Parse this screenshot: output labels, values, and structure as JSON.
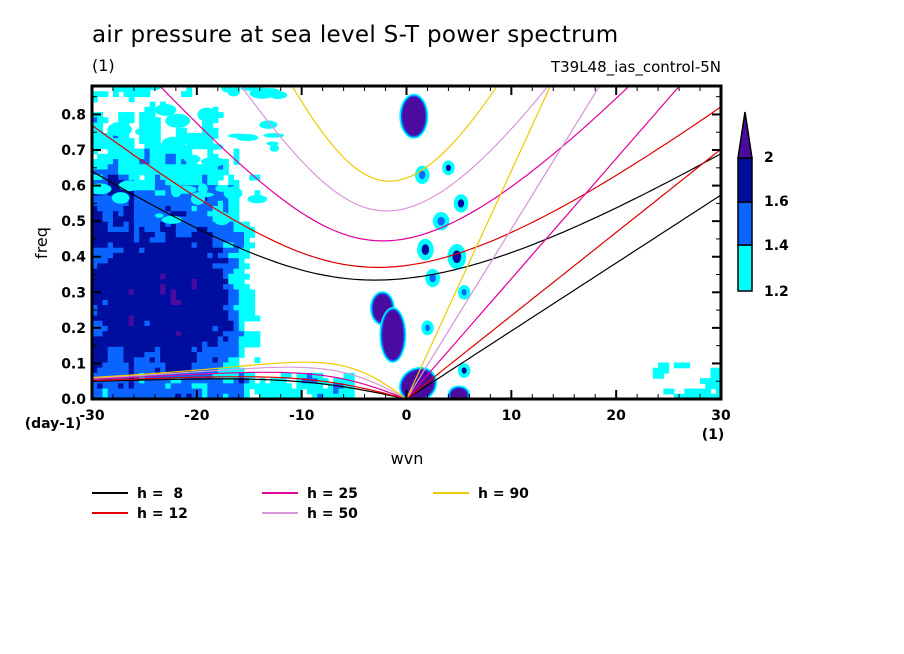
{
  "chart_data": {
    "type": "heatmap",
    "title": "air pressure at sea level S-T power spectrum",
    "units_label": "(1)",
    "experiment_label": "T39L48_ias_control-5N",
    "xlabel": "wvn",
    "xlabel_units": "(1)",
    "ylabel": "freq",
    "ylabel_units": "(day-1)",
    "xlim": [
      -30,
      30
    ],
    "ylim": [
      0,
      0.88
    ],
    "xticks": [
      -30,
      -20,
      -10,
      0,
      10,
      20,
      30
    ],
    "xtick_labels": [
      "-30",
      "-20",
      "-10",
      "0",
      "10",
      "20",
      "30"
    ],
    "yticks": [
      0.0,
      0.1,
      0.2,
      0.3,
      0.4,
      0.5,
      0.6,
      0.7,
      0.8
    ],
    "ytick_labels": [
      "0.0",
      "0.1",
      "0.2",
      "0.3",
      "0.4",
      "0.5",
      "0.6",
      "0.7",
      "0.8"
    ],
    "colorbar": {
      "levels": [
        1.2,
        1.4,
        1.6,
        2
      ],
      "level_labels": [
        "1.2",
        "1.4",
        "1.6",
        "2"
      ],
      "colors": [
        "#00ffff",
        "#0a64ff",
        "#000ea0",
        "#4b0aa0"
      ],
      "extend": "max"
    },
    "shaded_regions": [
      {
        "desc": "broad westward low-wavenumber power",
        "x_range": [
          -30,
          -14
        ],
        "y_range": [
          0.0,
          0.55
        ],
        "max_level": 2
      },
      {
        "desc": "high-freq cyan patches",
        "x_range": [
          -30,
          -18
        ],
        "y_range": [
          0.55,
          0.88
        ],
        "max_level": 1.4
      },
      {
        "desc": "blob near k=0 high freq",
        "x": 0.6,
        "y": 0.79,
        "level": 2
      },
      {
        "desc": "blob near k=-2",
        "x": -2,
        "y": 0.22,
        "level": 2
      },
      {
        "desc": "origin blob",
        "x": 1,
        "y": 0.03,
        "level": 2
      },
      {
        "desc": "eastward scattered patches",
        "x_range": [
          0,
          6
        ],
        "y_range": [
          0.1,
          0.5
        ],
        "max_level": 1.6
      },
      {
        "desc": "blob near k=5",
        "x": 5,
        "y": 0.01,
        "level": 2
      },
      {
        "desc": "low-freq eastward cyan",
        "x_range": [
          20,
          30
        ],
        "y_range": [
          0.0,
          0.15
        ],
        "max_level": 1.6
      }
    ],
    "dispersion_curves": {
      "equivalent_depths": [
        8,
        12,
        25,
        50,
        90
      ],
      "families": [
        "kelvin",
        "inertio-gravity n=1",
        "equatorial rossby n=1",
        "westward inertio-gravity"
      ]
    },
    "legend": {
      "placement": "bottom-left",
      "entries": [
        {
          "label": "h =  8",
          "color": "#000000"
        },
        {
          "label": "h = 12",
          "color": "#e00000"
        },
        {
          "label": "h = 25",
          "color": "#e0009c"
        },
        {
          "label": "h = 50",
          "color": "#d897d8"
        },
        {
          "label": "h = 90",
          "color": "#f0c800"
        }
      ]
    }
  }
}
